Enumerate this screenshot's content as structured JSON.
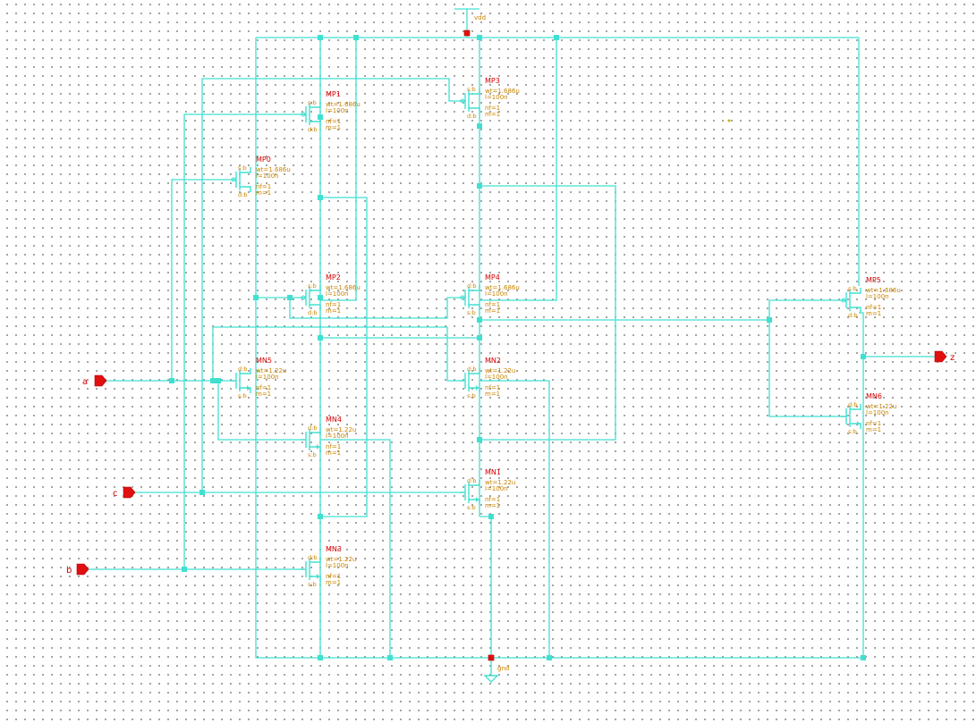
{
  "supplies": {
    "vdd": "vdd",
    "gnd": "gnd"
  },
  "pins": {
    "a": "a",
    "b": "b",
    "c": "c",
    "z": "z"
  },
  "colors": {
    "wire": "#40e0d0",
    "instance": "#d40000",
    "param": "#c88400",
    "pin": "#e01010",
    "grid_dot": "#8a8a8a"
  },
  "transistors": [
    {
      "name": "MP1",
      "type": "pmos",
      "terms": [
        "s:b",
        "d:b"
      ],
      "params": [
        "wt=1.686u",
        "l=100n",
        "nf=1",
        "m=1"
      ]
    },
    {
      "name": "MP3",
      "type": "pmos",
      "terms": [
        "s:b",
        "d:b"
      ],
      "params": [
        "wt=1.686u",
        "l=100n",
        "nf=1",
        "m=1"
      ]
    },
    {
      "name": "MP0",
      "type": "pmos",
      "terms": [
        "s:b",
        "d:b"
      ],
      "params": [
        "wt=1.686u",
        "l=100n",
        "nf=1",
        "m=1"
      ]
    },
    {
      "name": "MP2",
      "type": "pmos",
      "terms": [
        "s:b",
        "d:b"
      ],
      "params": [
        "wt=1.686u",
        "l=100n",
        "nf=1",
        "m=1"
      ]
    },
    {
      "name": "MP4",
      "type": "pmos",
      "terms": [
        "d:b",
        "s:b"
      ],
      "params": [
        "wt=1.686u",
        "l=100n",
        "nf=1",
        "m=1"
      ]
    },
    {
      "name": "MP5",
      "type": "pmos",
      "terms": [
        "s:b",
        "d:b"
      ],
      "params": [
        "wt=1.686u",
        "l=100n",
        "nf=1",
        "m=1"
      ]
    },
    {
      "name": "MN5",
      "type": "nmos",
      "terms": [
        "d:b",
        "s:b"
      ],
      "params": [
        "wt=1.22u",
        "l=100n",
        "nf=1",
        "m=1"
      ]
    },
    {
      "name": "MN2",
      "type": "nmos",
      "terms": [
        "d:b",
        "s:b"
      ],
      "params": [
        "wt=1.22u",
        "l=100n",
        "nf=1",
        "m=1"
      ]
    },
    {
      "name": "MN4",
      "type": "nmos",
      "terms": [
        "d:b",
        "s:b"
      ],
      "params": [
        "wt=1.22u",
        "l=100n",
        "nf=1",
        "m=1"
      ]
    },
    {
      "name": "MN1",
      "type": "nmos",
      "terms": [
        "d:b",
        "s:b"
      ],
      "params": [
        "wt=1.22u",
        "l=100n",
        "nf=1",
        "m=1"
      ]
    },
    {
      "name": "MN3",
      "type": "nmos",
      "terms": [
        "d:b",
        "s:b"
      ],
      "params": [
        "wt=1.22u",
        "l=100n",
        "nf=1",
        "m=1"
      ]
    },
    {
      "name": "MN6",
      "type": "nmos",
      "terms": [
        "d:b",
        "s:b"
      ],
      "params": [
        "wt=1.22u",
        "l=100n",
        "nf=1",
        "m=1"
      ]
    }
  ]
}
